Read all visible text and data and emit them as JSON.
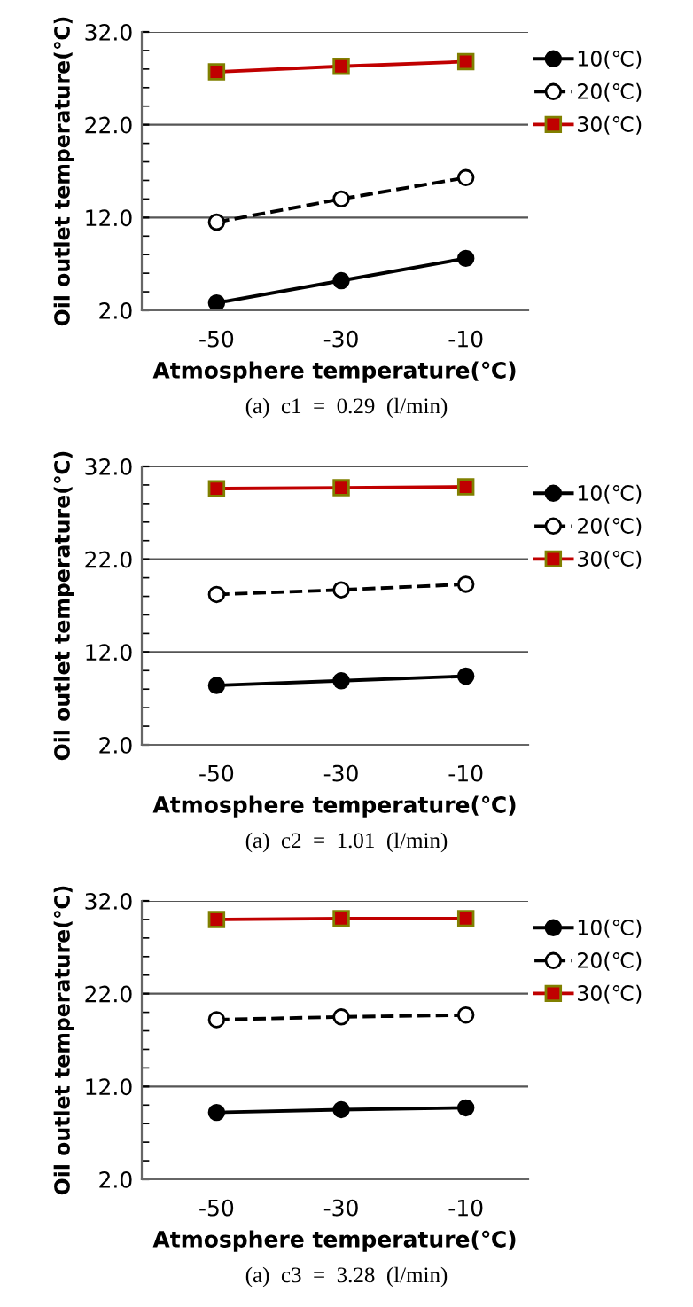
{
  "chart_data": [
    {
      "type": "line",
      "xlabel": "Atmosphere temperature(℃)",
      "ylabel": "Oil outlet temperature(℃)",
      "categories": [
        "-50",
        "-30",
        "-10"
      ],
      "ylim": [
        2,
        32
      ],
      "yticks": [
        {
          "value": 2,
          "label": "2.0"
        },
        {
          "value": 12,
          "label": "12.0"
        },
        {
          "value": 22,
          "label": "22.0"
        },
        {
          "value": 32,
          "label": "32.0"
        }
      ],
      "grid": "y",
      "legend": "right",
      "annotations": [
        "(a)  c1  =  0.29  (l/min)"
      ],
      "series": [
        {
          "name": "10(℃)",
          "color": "#000000",
          "marker": "circle",
          "line_style": "solid",
          "values": [
            2.8,
            5.2,
            7.6
          ]
        },
        {
          "name": "20(℃)",
          "color": "#000000",
          "marker": "circle",
          "line_style": "dashed",
          "values": [
            11.5,
            14.0,
            16.3
          ]
        },
        {
          "name": "30(℃)",
          "color": "#c00000",
          "marker": "square",
          "line_style": "solid",
          "values": [
            27.7,
            28.3,
            28.8
          ]
        }
      ]
    },
    {
      "type": "line",
      "xlabel": "Atmosphere temperature(℃)",
      "ylabel": "Oil outlet temperature(℃)",
      "categories": [
        "-50",
        "-30",
        "-10"
      ],
      "ylim": [
        2,
        32
      ],
      "yticks": [
        {
          "value": 2,
          "label": "2.0"
        },
        {
          "value": 12,
          "label": "12.0"
        },
        {
          "value": 22,
          "label": "22.0"
        },
        {
          "value": 32,
          "label": "32.0"
        }
      ],
      "grid": "y",
      "legend": "right",
      "annotations": [
        "(a)  c2  =  1.01  (l/min)"
      ],
      "series": [
        {
          "name": "10(℃)",
          "color": "#000000",
          "marker": "circle",
          "line_style": "solid",
          "values": [
            8.4,
            8.9,
            9.4
          ]
        },
        {
          "name": "20(℃)",
          "color": "#000000",
          "marker": "circle",
          "line_style": "dashed",
          "values": [
            18.2,
            18.7,
            19.3
          ]
        },
        {
          "name": "30(℃)",
          "color": "#c00000",
          "marker": "square",
          "line_style": "solid",
          "values": [
            29.6,
            29.7,
            29.8
          ]
        }
      ]
    },
    {
      "type": "line",
      "xlabel": "Atmosphere temperature(℃)",
      "ylabel": "Oil outlet temperature(℃)",
      "categories": [
        "-50",
        "-30",
        "-10"
      ],
      "ylim": [
        2,
        32
      ],
      "yticks": [
        {
          "value": 2,
          "label": "2.0"
        },
        {
          "value": 12,
          "label": "12.0"
        },
        {
          "value": 22,
          "label": "22.0"
        },
        {
          "value": 32,
          "label": "32.0"
        }
      ],
      "grid": "y",
      "legend": "right",
      "annotations": [
        "(a)  c3  =  3.28  (l/min)"
      ],
      "series": [
        {
          "name": "10(℃)",
          "color": "#000000",
          "marker": "circle",
          "line_style": "solid",
          "values": [
            9.2,
            9.5,
            9.7
          ]
        },
        {
          "name": "20(℃)",
          "color": "#000000",
          "marker": "circle",
          "line_style": "dashed",
          "values": [
            19.2,
            19.5,
            19.7
          ]
        },
        {
          "name": "30(℃)",
          "color": "#c00000",
          "marker": "square",
          "line_style": "solid",
          "values": [
            30.0,
            30.1,
            30.1
          ]
        }
      ]
    }
  ]
}
